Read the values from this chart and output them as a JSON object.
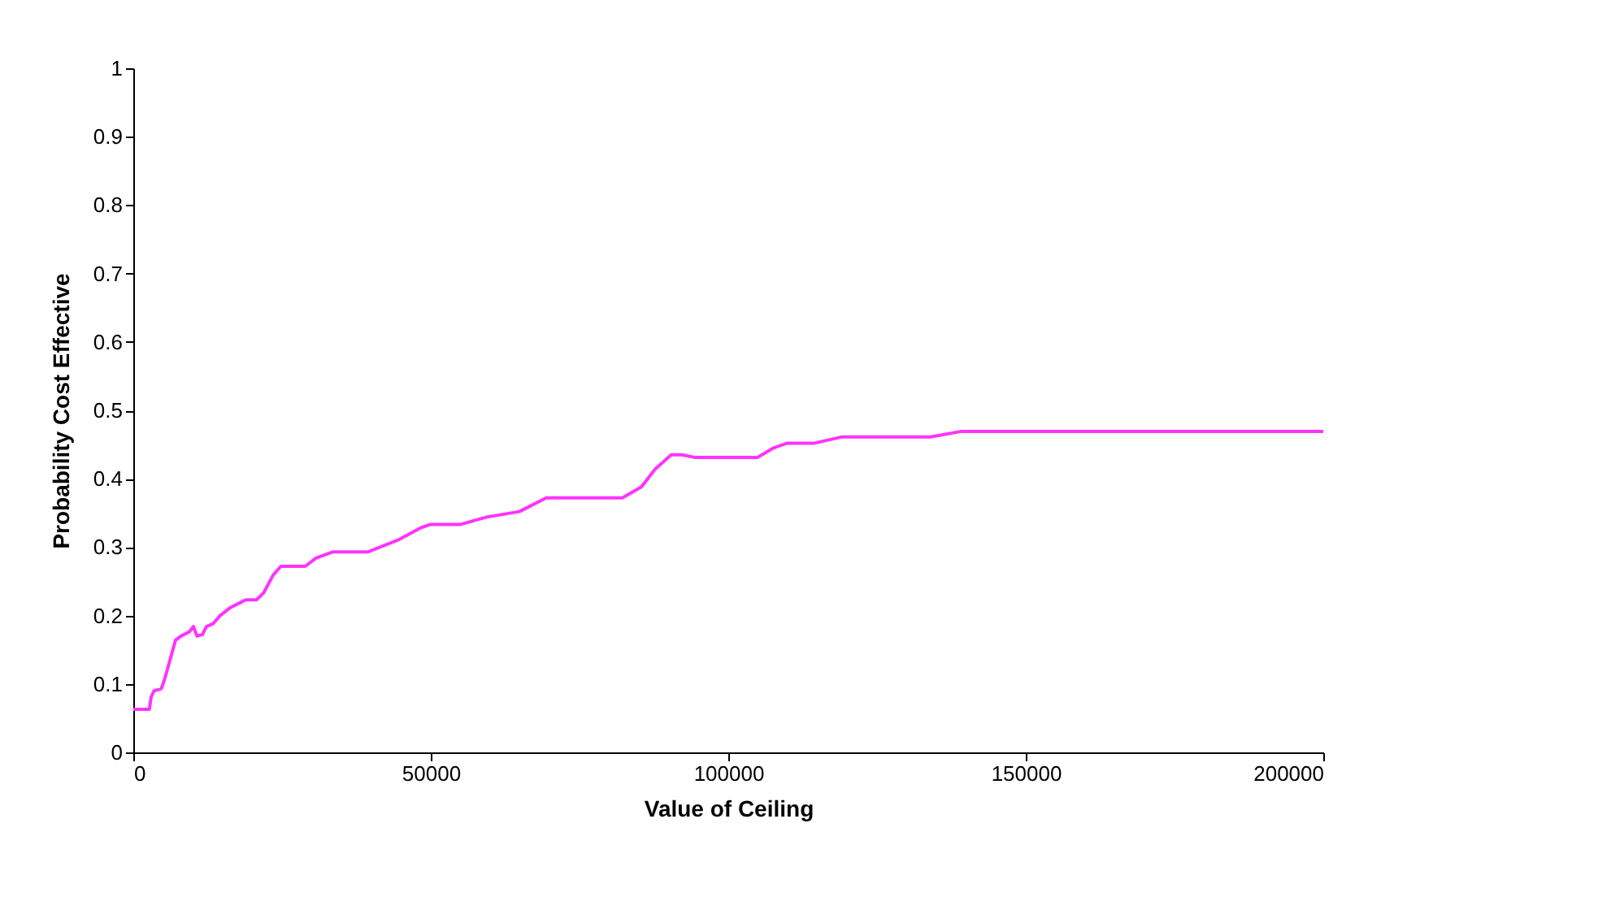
{
  "chart_data": {
    "type": "line",
    "xlabel": "Value of Ceiling",
    "ylabel": "Probability Cost Effective",
    "xlim": [
      0,
      200000
    ],
    "xticks": [
      0,
      50000,
      100000,
      150000,
      200000
    ],
    "ylim": [
      0,
      1
    ],
    "yticks": [
      0,
      0.1,
      0.2,
      0.3,
      0.4,
      0.5,
      0.6,
      0.7,
      0.8,
      0.9,
      1
    ],
    "grid": false,
    "marker": "none",
    "line_style": "solid",
    "series": [
      {
        "color": "#ff33ff",
        "x": [
          0,
          2700,
          3000,
          3500,
          4700,
          5300,
          7100,
          8000,
          9400,
          10100,
          10700,
          11600,
          12300,
          13400,
          14600,
          16200,
          18000,
          18900,
          20700,
          21900,
          23500,
          24800,
          28900,
          30700,
          33500,
          39400,
          44400,
          48500,
          49900,
          54900,
          59400,
          64900,
          69400,
          82200,
          85400,
          87700,
          90400,
          92200,
          94500,
          104900,
          107600,
          109900,
          114500,
          119000,
          134000,
          139000,
          200000
        ],
        "values": [
          0.063,
          0.063,
          0.081,
          0.09,
          0.093,
          0.108,
          0.164,
          0.17,
          0.176,
          0.184,
          0.17,
          0.172,
          0.184,
          0.188,
          0.2,
          0.211,
          0.219,
          0.223,
          0.223,
          0.233,
          0.259,
          0.272,
          0.272,
          0.284,
          0.293,
          0.293,
          0.31,
          0.329,
          0.333,
          0.333,
          0.344,
          0.352,
          0.372,
          0.372,
          0.388,
          0.414,
          0.435,
          0.435,
          0.431,
          0.431,
          0.445,
          0.452,
          0.452,
          0.461,
          0.461,
          0.469,
          0.469
        ]
      }
    ]
  }
}
